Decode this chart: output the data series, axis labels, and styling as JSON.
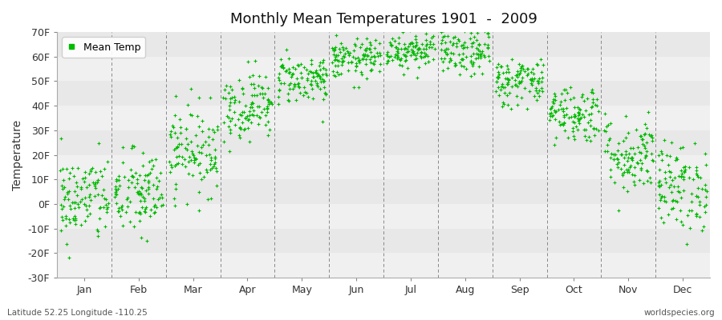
{
  "title": "Monthly Mean Temperatures 1901  -  2009",
  "ylabel": "Temperature",
  "xlabel_bottom_left": "Latitude 52.25 Longitude -110.25",
  "xlabel_bottom_right": "worldspecies.org",
  "dot_color": "#00bb00",
  "background_color": "#ffffff",
  "plot_bg_color": "#ffffff",
  "band_color_light": "#f0f0f0",
  "band_color_dark": "#e8e8e8",
  "ytick_labels": [
    "-30F",
    "-20F",
    "-10F",
    "0F",
    "10F",
    "20F",
    "30F",
    "40F",
    "50F",
    "60F",
    "70F"
  ],
  "ytick_values": [
    -30,
    -20,
    -10,
    0,
    10,
    20,
    30,
    40,
    50,
    60,
    70
  ],
  "ylim": [
    -30,
    70
  ],
  "months": [
    "Jan",
    "Feb",
    "Mar",
    "Apr",
    "May",
    "Jun",
    "Jul",
    "Aug",
    "Sep",
    "Oct",
    "Nov",
    "Dec"
  ],
  "n_years": 109,
  "mean_temps_f": [
    2,
    4,
    22,
    40,
    51,
    59,
    63,
    62,
    50,
    37,
    20,
    7
  ],
  "std_temps_f": [
    9,
    9,
    9,
    7,
    5,
    4,
    4,
    5,
    5,
    6,
    8,
    9
  ],
  "seed": 42
}
